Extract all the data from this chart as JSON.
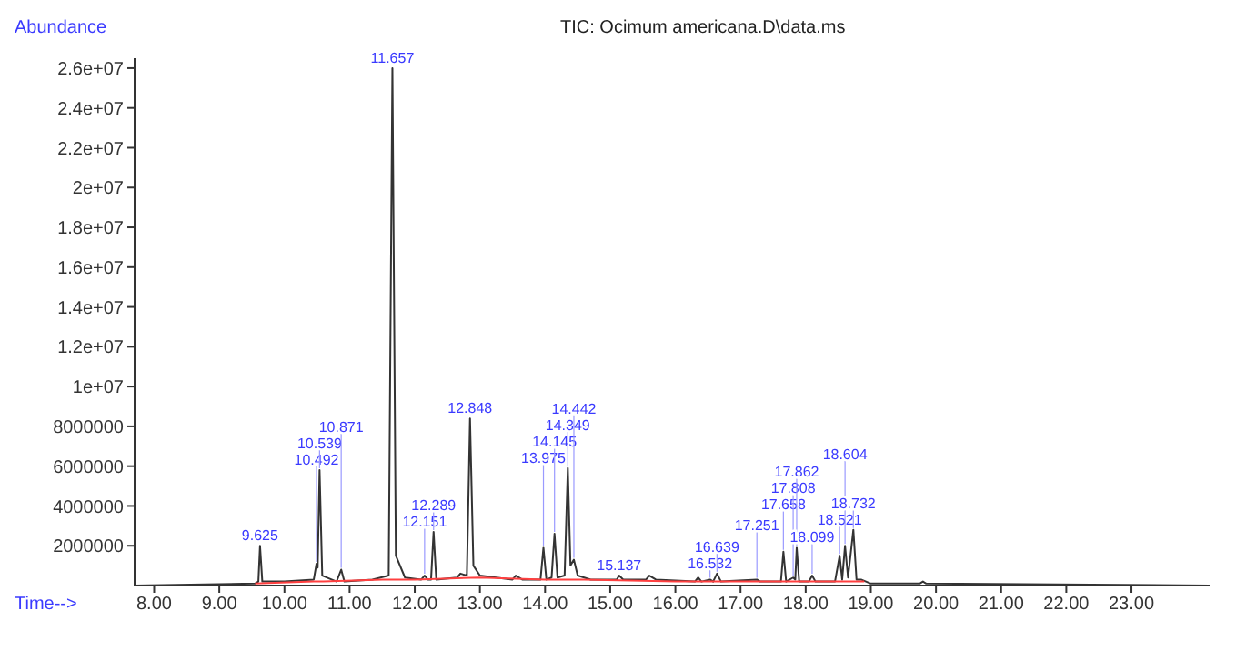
{
  "chart_data": {
    "type": "line",
    "title": "TIC: Ocimum americana.D\\data.ms",
    "xlabel": "Time-->",
    "ylabel": "Abundance",
    "xlim": [
      7.7,
      24.2
    ],
    "xticks": [
      {
        "value": 8,
        "label": "8.00"
      },
      {
        "value": 9,
        "label": "9.00"
      },
      {
        "value": 10,
        "label": "10.00"
      },
      {
        "value": 11,
        "label": "11.00"
      },
      {
        "value": 12,
        "label": "12.00"
      },
      {
        "value": 13,
        "label": "13.00"
      },
      {
        "value": 14,
        "label": "14.00"
      },
      {
        "value": 15,
        "label": "15.00"
      },
      {
        "value": 16,
        "label": "16.00"
      },
      {
        "value": 17,
        "label": "17.00"
      },
      {
        "value": 18,
        "label": "18.00"
      },
      {
        "value": 19,
        "label": "19.00"
      },
      {
        "value": 20,
        "label": "20.00"
      },
      {
        "value": 21,
        "label": "21.00"
      },
      {
        "value": 22,
        "label": "22.00"
      },
      {
        "value": 23,
        "label": "23.00"
      }
    ],
    "ylim": [
      0,
      26500000
    ],
    "yticks": [
      2000000,
      4000000,
      6000000,
      8000000,
      {
        "value": 10000000,
        "label": "1e+07"
      },
      {
        "value": 12000000,
        "label": "1.2e+07"
      },
      {
        "value": 14000000,
        "label": "1.4e+07"
      },
      {
        "value": 16000000,
        "label": "1.6e+07"
      },
      {
        "value": 18000000,
        "label": "1.8e+07"
      },
      {
        "value": 20000000,
        "label": "2e+07"
      },
      {
        "value": 22000000,
        "label": "2.2e+07"
      },
      {
        "value": 24000000,
        "label": "2.4e+07"
      },
      {
        "value": 26000000,
        "label": "2.6e+07"
      }
    ],
    "grid": false,
    "legend": false,
    "marker": "none",
    "line_style": "solid",
    "series": [
      {
        "color": "#333333",
        "x": [
          7.7,
          9.55,
          9.6,
          9.625,
          9.66,
          10.0,
          10.45,
          10.492,
          10.51,
          10.539,
          10.58,
          10.8,
          10.871,
          10.92,
          11.35,
          11.6,
          11.657,
          11.71,
          11.85,
          12.1,
          12.151,
          12.2,
          12.25,
          12.289,
          12.33,
          12.65,
          12.7,
          12.8,
          12.848,
          12.9,
          13.0,
          13.5,
          13.55,
          13.65,
          13.93,
          13.975,
          14.02,
          14.1,
          14.145,
          14.19,
          14.3,
          14.349,
          14.39,
          14.442,
          14.5,
          14.7,
          15.1,
          15.137,
          15.2,
          15.55,
          15.6,
          15.7,
          16.3,
          16.35,
          16.4,
          16.532,
          16.58,
          16.639,
          16.7,
          17.251,
          17.3,
          17.62,
          17.658,
          17.7,
          17.808,
          17.84,
          17.862,
          17.9,
          18.05,
          18.099,
          18.15,
          18.45,
          18.521,
          18.56,
          18.604,
          18.65,
          18.732,
          18.78,
          18.85,
          19.0,
          19.75,
          19.8,
          19.85,
          24.2
        ],
        "values": [
          0,
          100000,
          200000,
          2000000,
          200000,
          200000,
          300000,
          1100000,
          900000,
          5800000,
          500000,
          200000,
          800000,
          200000,
          300000,
          500000,
          26000000,
          1500000,
          400000,
          300000,
          500000,
          300000,
          300000,
          2700000,
          300000,
          400000,
          600000,
          500000,
          8400000,
          1000000,
          500000,
          300000,
          500000,
          300000,
          300000,
          1900000,
          300000,
          400000,
          2600000,
          400000,
          500000,
          5900000,
          1000000,
          1300000,
          500000,
          300000,
          300000,
          500000,
          300000,
          300000,
          500000,
          300000,
          200000,
          400000,
          200000,
          300000,
          200000,
          600000,
          200000,
          300000,
          200000,
          200000,
          1700000,
          200000,
          400000,
          300000,
          1900000,
          200000,
          200000,
          500000,
          200000,
          200000,
          1500000,
          300000,
          2000000,
          400000,
          2800000,
          300000,
          300000,
          100000,
          100000,
          200000,
          100000,
          0
        ]
      },
      {
        "color": "#ff4040",
        "x": [
          9.55,
          10.45,
          10.6,
          11.5,
          12.0,
          13.0,
          14.0,
          14.6,
          16.0,
          18.0,
          18.9
        ],
        "values": [
          100000,
          200000,
          200000,
          300000,
          300000,
          400000,
          300000,
          300000,
          200000,
          200000,
          200000
        ]
      }
    ],
    "annotations": [
      {
        "text": "9.625",
        "x": 9.625,
        "y": 2000000
      },
      {
        "text": "10.492",
        "x": 10.492,
        "y": 1100000
      },
      {
        "text": "10.539",
        "x": 10.539,
        "y": 5800000
      },
      {
        "text": "10.871",
        "x": 10.871,
        "y": 800000
      },
      {
        "text": "11.657",
        "x": 11.657,
        "y": 26000000
      },
      {
        "text": "12.151",
        "x": 12.151,
        "y": 500000
      },
      {
        "text": "12.289",
        "x": 12.289,
        "y": 2700000
      },
      {
        "text": "12.848",
        "x": 12.848,
        "y": 8400000
      },
      {
        "text": "13.975",
        "x": 13.975,
        "y": 1900000
      },
      {
        "text": "14.145",
        "x": 14.145,
        "y": 2600000
      },
      {
        "text": "14.349",
        "x": 14.349,
        "y": 5900000
      },
      {
        "text": "14.442",
        "x": 14.442,
        "y": 1300000
      },
      {
        "text": "15.137",
        "x": 15.137,
        "y": 500000
      },
      {
        "text": "16.532",
        "x": 16.532,
        "y": 300000
      },
      {
        "text": "16.639",
        "x": 16.639,
        "y": 600000
      },
      {
        "text": "17.251",
        "x": 17.251,
        "y": 300000
      },
      {
        "text": "17.658",
        "x": 17.658,
        "y": 1700000
      },
      {
        "text": "17.808",
        "x": 17.808,
        "y": 400000
      },
      {
        "text": "17.862",
        "x": 17.862,
        "y": 1900000
      },
      {
        "text": "18.099",
        "x": 18.099,
        "y": 500000
      },
      {
        "text": "18.521",
        "x": 18.521,
        "y": 1500000
      },
      {
        "text": "18.604",
        "x": 18.604,
        "y": 2000000
      },
      {
        "text": "18.732",
        "x": 18.732,
        "y": 2800000
      }
    ]
  }
}
